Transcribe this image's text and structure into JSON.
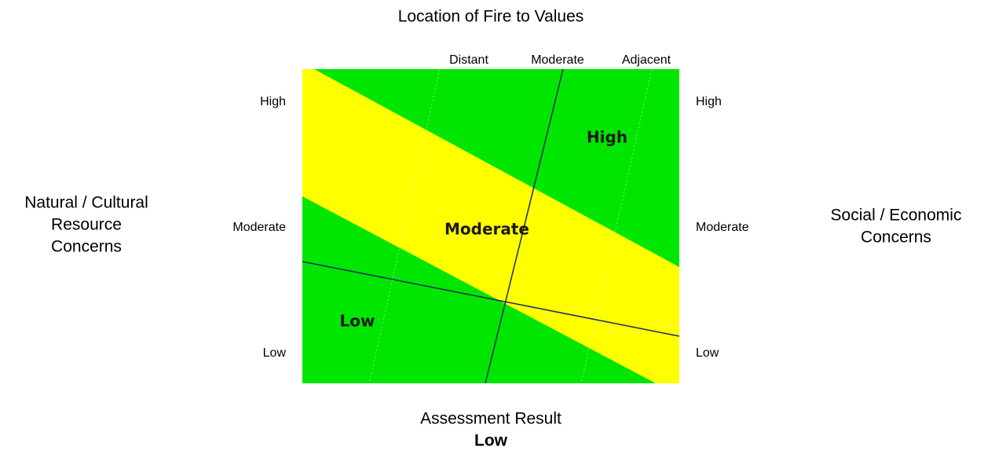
{
  "title": "Location of Fire to Values",
  "top_labels": [
    "Distant",
    "Moderate",
    "Adjacent"
  ],
  "left_axis": {
    "title_lines": [
      "Natural / Cultural",
      "Resource",
      "Concerns"
    ],
    "levels": [
      "High",
      "Moderate",
      "Low"
    ]
  },
  "right_axis": {
    "title_lines": [
      "Social / Economic",
      "Concerns"
    ],
    "levels": [
      "High",
      "Moderate",
      "Low"
    ]
  },
  "zones": {
    "high": "High",
    "moderate": "Moderate",
    "low": "Low"
  },
  "result": {
    "label": "Assessment Result",
    "value": "Low"
  }
}
